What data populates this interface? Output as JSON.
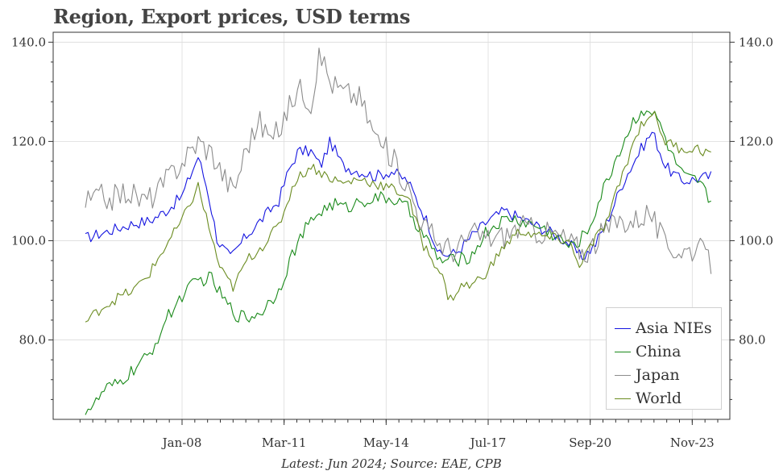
{
  "title": "Region, Export prices, USD terms",
  "footnote": "Latest: Jun 2024; Source: EAE, CPB",
  "chart_data": {
    "type": "line",
    "x_start": "Jan-05",
    "x_end": "Jun-24",
    "frequency": "monthly",
    "x_tick_labels": [
      "Jan-08",
      "Mar-11",
      "May-14",
      "Jul-17",
      "Sep-20",
      "Nov-23"
    ],
    "y_tick_labels_left": [
      "80.0",
      "100.0",
      "120.0",
      "140.0"
    ],
    "y_tick_labels_right": [
      "80.0",
      "100.0",
      "120.0",
      "140.0"
    ],
    "ylim": [
      64,
      142
    ],
    "grid": true,
    "legend_position": "lower-right",
    "series": [
      {
        "name": "Asia NIEs",
        "color": "#1515e0",
        "anchors": [
          [
            2005.0,
            100.5
          ],
          [
            2005.5,
            101.5
          ],
          [
            2006.0,
            102.5
          ],
          [
            2006.5,
            103.5
          ],
          [
            2007.0,
            104.0
          ],
          [
            2007.5,
            106.0
          ],
          [
            2008.0,
            109.0
          ],
          [
            2008.5,
            117.0
          ],
          [
            2008.8,
            110.0
          ],
          [
            2009.1,
            100.0
          ],
          [
            2009.5,
            96.5
          ],
          [
            2010.0,
            101.0
          ],
          [
            2010.5,
            104.5
          ],
          [
            2011.0,
            108.0
          ],
          [
            2011.3,
            114.0
          ],
          [
            2011.6,
            118.0
          ],
          [
            2012.0,
            118.0
          ],
          [
            2012.3,
            115.0
          ],
          [
            2012.6,
            120.0
          ],
          [
            2013.0,
            115.0
          ],
          [
            2013.5,
            114.0
          ],
          [
            2014.0,
            113.0
          ],
          [
            2014.5,
            114.0
          ],
          [
            2015.0,
            112.0
          ],
          [
            2015.6,
            104.0
          ],
          [
            2016.0,
            97.0
          ],
          [
            2016.5,
            97.5
          ],
          [
            2017.0,
            101.0
          ],
          [
            2017.5,
            104.0
          ],
          [
            2018.0,
            106.0
          ],
          [
            2018.5,
            104.5
          ],
          [
            2019.0,
            103.0
          ],
          [
            2019.5,
            101.5
          ],
          [
            2020.0,
            99.5
          ],
          [
            2020.4,
            96.5
          ],
          [
            2020.8,
            99.0
          ],
          [
            2021.2,
            104.0
          ],
          [
            2021.7,
            112.0
          ],
          [
            2022.2,
            118.0
          ],
          [
            2022.6,
            122.0
          ],
          [
            2023.0,
            115.0
          ],
          [
            2023.5,
            112.0
          ],
          [
            2024.0,
            112.5
          ],
          [
            2024.42,
            113.0
          ]
        ]
      },
      {
        "name": "China",
        "color": "#1a8a1a",
        "anchors": [
          [
            2005.0,
            66.0
          ],
          [
            2005.3,
            67.0
          ],
          [
            2005.6,
            70.0
          ],
          [
            2006.0,
            71.0
          ],
          [
            2006.5,
            74.0
          ],
          [
            2007.0,
            77.0
          ],
          [
            2007.5,
            84.0
          ],
          [
            2008.0,
            89.0
          ],
          [
            2008.5,
            92.0
          ],
          [
            2008.9,
            92.5
          ],
          [
            2009.3,
            88.0
          ],
          [
            2009.7,
            85.0
          ],
          [
            2010.1,
            84.5
          ],
          [
            2010.5,
            86.0
          ],
          [
            2011.0,
            90.0
          ],
          [
            2011.4,
            97.0
          ],
          [
            2011.8,
            102.0
          ],
          [
            2012.2,
            105.5
          ],
          [
            2012.7,
            107.5
          ],
          [
            2013.1,
            106.5
          ],
          [
            2013.5,
            108.0
          ],
          [
            2014.0,
            108.5
          ],
          [
            2014.5,
            108.5
          ],
          [
            2015.0,
            106.5
          ],
          [
            2015.5,
            101.0
          ],
          [
            2016.0,
            96.0
          ],
          [
            2016.5,
            96.0
          ],
          [
            2017.0,
            97.0
          ],
          [
            2017.4,
            101.5
          ],
          [
            2017.8,
            103.5
          ],
          [
            2018.2,
            104.5
          ],
          [
            2018.7,
            103.5
          ],
          [
            2019.2,
            102.5
          ],
          [
            2019.7,
            100.5
          ],
          [
            2020.1,
            98.5
          ],
          [
            2020.6,
            102.0
          ],
          [
            2021.0,
            109.0
          ],
          [
            2021.5,
            117.0
          ],
          [
            2022.0,
            124.0
          ],
          [
            2022.4,
            127.0
          ],
          [
            2022.8,
            124.0
          ],
          [
            2023.2,
            117.0
          ],
          [
            2023.6,
            112.5
          ],
          [
            2024.0,
            112.0
          ],
          [
            2024.42,
            108.0
          ]
        ]
      },
      {
        "name": "Japan",
        "color": "#8c8c8c",
        "anchors": [
          [
            2005.0,
            107.5
          ],
          [
            2005.4,
            109.0
          ],
          [
            2005.8,
            108.5
          ],
          [
            2006.3,
            110.0
          ],
          [
            2006.8,
            108.0
          ],
          [
            2007.2,
            109.5
          ],
          [
            2007.6,
            113.0
          ],
          [
            2008.0,
            116.0
          ],
          [
            2008.5,
            120.0
          ],
          [
            2008.9,
            118.0
          ],
          [
            2009.3,
            113.0
          ],
          [
            2009.6,
            110.0
          ],
          [
            2010.0,
            119.0
          ],
          [
            2010.4,
            124.0
          ],
          [
            2010.8,
            120.0
          ],
          [
            2011.2,
            125.0
          ],
          [
            2011.6,
            131.0
          ],
          [
            2012.0,
            128.0
          ],
          [
            2012.3,
            138.0
          ],
          [
            2012.6,
            132.0
          ],
          [
            2013.0,
            130.0
          ],
          [
            2013.5,
            129.0
          ],
          [
            2014.0,
            121.0
          ],
          [
            2014.5,
            117.0
          ],
          [
            2015.0,
            111.0
          ],
          [
            2015.5,
            103.0
          ],
          [
            2016.0,
            99.5
          ],
          [
            2016.5,
            98.0
          ],
          [
            2017.0,
            101.5
          ],
          [
            2017.5,
            100.5
          ],
          [
            2018.0,
            101.0
          ],
          [
            2018.5,
            103.0
          ],
          [
            2019.0,
            102.0
          ],
          [
            2019.5,
            101.5
          ],
          [
            2020.0,
            100.0
          ],
          [
            2020.5,
            97.5
          ],
          [
            2021.0,
            101.0
          ],
          [
            2021.5,
            104.0
          ],
          [
            2022.0,
            104.0
          ],
          [
            2022.5,
            106.0
          ],
          [
            2023.0,
            99.0
          ],
          [
            2023.5,
            98.0
          ],
          [
            2024.0,
            98.5
          ],
          [
            2024.42,
            95.5
          ]
        ]
      },
      {
        "name": "World",
        "color": "#6b8c21",
        "anchors": [
          [
            2005.0,
            83.5
          ],
          [
            2005.5,
            86.5
          ],
          [
            2006.0,
            88.5
          ],
          [
            2006.5,
            90.0
          ],
          [
            2007.0,
            93.5
          ],
          [
            2007.5,
            99.0
          ],
          [
            2008.0,
            104.0
          ],
          [
            2008.5,
            111.0
          ],
          [
            2008.9,
            101.0
          ],
          [
            2009.2,
            94.0
          ],
          [
            2009.6,
            90.5
          ],
          [
            2010.0,
            96.0
          ],
          [
            2010.5,
            99.0
          ],
          [
            2011.0,
            103.0
          ],
          [
            2011.5,
            112.0
          ],
          [
            2012.0,
            115.0
          ],
          [
            2012.5,
            113.0
          ],
          [
            2013.0,
            111.5
          ],
          [
            2013.5,
            112.5
          ],
          [
            2014.0,
            111.5
          ],
          [
            2014.5,
            110.5
          ],
          [
            2015.0,
            109.0
          ],
          [
            2015.5,
            99.0
          ],
          [
            2016.0,
            94.0
          ],
          [
            2016.3,
            88.0
          ],
          [
            2016.7,
            91.0
          ],
          [
            2017.0,
            91.0
          ],
          [
            2017.5,
            94.0
          ],
          [
            2018.0,
            99.0
          ],
          [
            2018.5,
            102.0
          ],
          [
            2019.0,
            101.0
          ],
          [
            2019.5,
            100.5
          ],
          [
            2020.0,
            100.0
          ],
          [
            2020.3,
            95.0
          ],
          [
            2020.8,
            100.0
          ],
          [
            2021.2,
            104.0
          ],
          [
            2021.7,
            114.0
          ],
          [
            2022.2,
            123.0
          ],
          [
            2022.6,
            126.0
          ],
          [
            2023.0,
            120.0
          ],
          [
            2023.5,
            118.5
          ],
          [
            2024.0,
            118.5
          ],
          [
            2024.42,
            117.5
          ]
        ]
      }
    ]
  }
}
